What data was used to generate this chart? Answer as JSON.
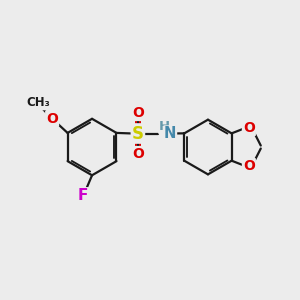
{
  "bg_color": "#ececec",
  "bond_color": "#1a1a1a",
  "bond_width": 1.6,
  "dbo": 0.055,
  "atom_colors": {
    "S": "#cccc00",
    "O": "#dd0000",
    "N": "#4488aa",
    "F": "#cc00cc",
    "C": "#1a1a1a"
  },
  "font_size_atom": 10.5,
  "font_size_small": 9.0
}
